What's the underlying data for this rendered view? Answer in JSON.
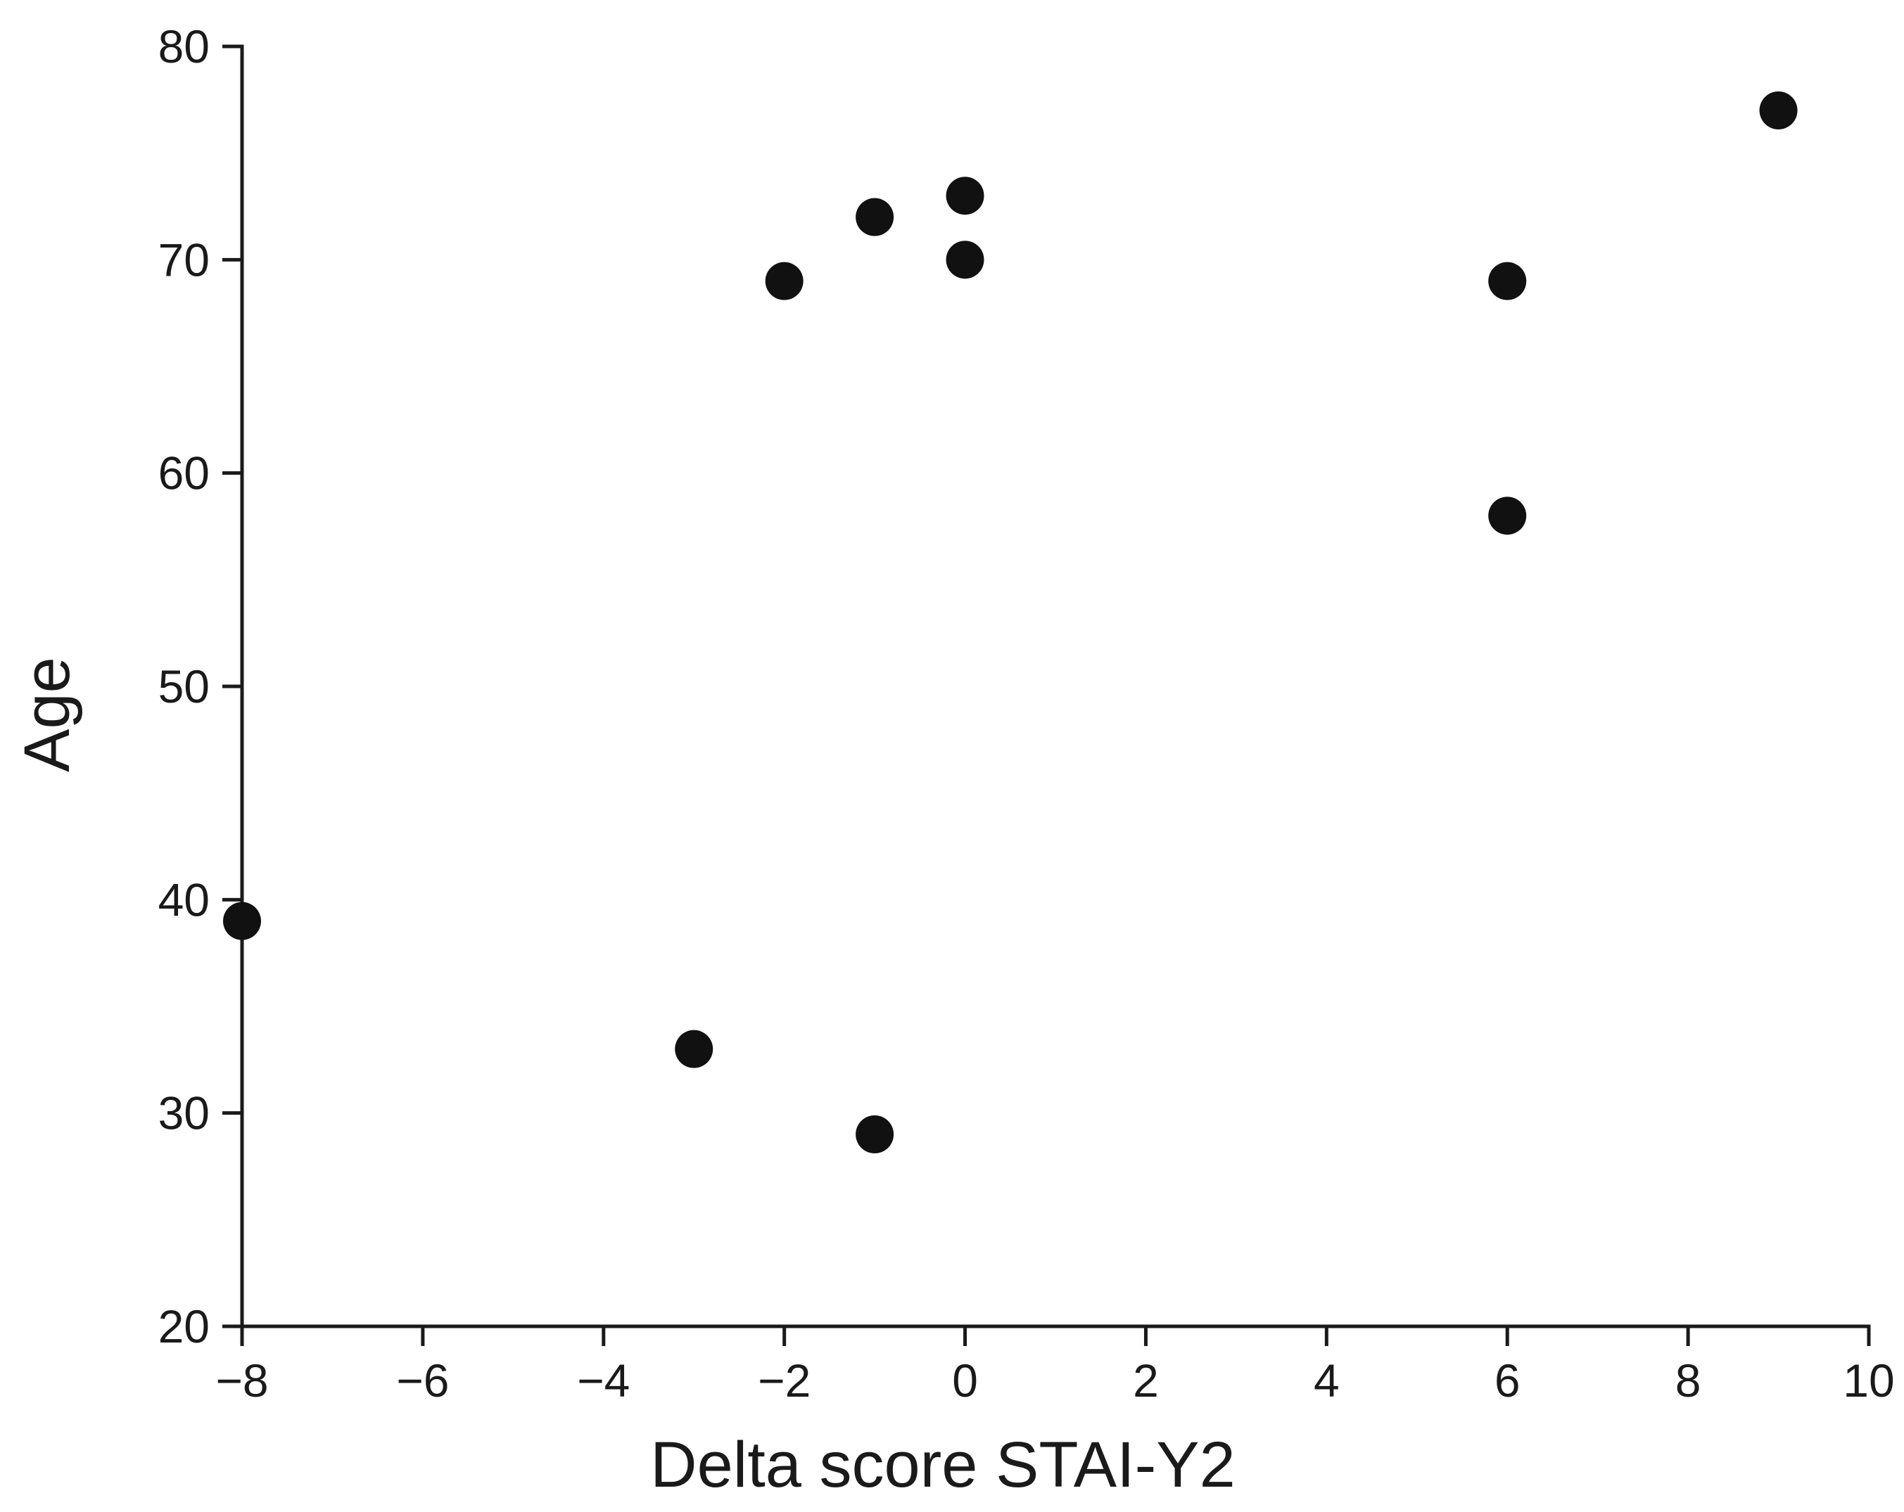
{
  "chart_data": {
    "type": "scatter",
    "title": "",
    "xlabel": "Delta score STAI-Y2",
    "ylabel": "Age",
    "xlim": [
      -8,
      10
    ],
    "ylim": [
      20,
      80
    ],
    "xticks": [
      -8,
      -6,
      -4,
      -2,
      0,
      2,
      4,
      6,
      8,
      10
    ],
    "xtick_labels": [
      "−8",
      "−6",
      "−4",
      "−2",
      "0",
      "2",
      "4",
      "6",
      "8",
      "10"
    ],
    "yticks": [
      20,
      30,
      40,
      50,
      60,
      70,
      80
    ],
    "ytick_labels": [
      "20",
      "30",
      "40",
      "50",
      "60",
      "70",
      "80"
    ],
    "grid": false,
    "legend": "none",
    "marker_color": "#111111",
    "points": [
      {
        "x": -8,
        "y": 39
      },
      {
        "x": -3,
        "y": 33
      },
      {
        "x": -2,
        "y": 69
      },
      {
        "x": -1,
        "y": 72
      },
      {
        "x": -1,
        "y": 29
      },
      {
        "x": 0,
        "y": 73
      },
      {
        "x": 0,
        "y": 70
      },
      {
        "x": 6,
        "y": 69
      },
      {
        "x": 6,
        "y": 58
      },
      {
        "x": 9,
        "y": 77
      }
    ]
  }
}
